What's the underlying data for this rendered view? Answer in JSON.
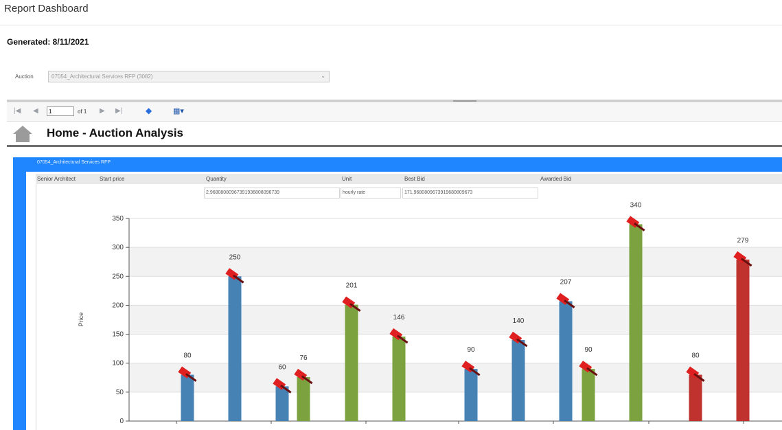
{
  "header": {
    "title": "Report Dashboard"
  },
  "generated": "Generated: 8/11/2021",
  "auction": {
    "label": "Auction",
    "value": "07054_Architectural Services RFP (3082)"
  },
  "toolbar": {
    "page": "1",
    "of_label": "of 1"
  },
  "nav": {
    "title": "Home - Auction Analysis"
  },
  "panel": {
    "title": "07054_Architectural Services RFP",
    "columns": [
      "Senior Architect",
      "Start price",
      "Quantity",
      "Unit",
      "Best Bid",
      "Awarded Bid"
    ],
    "row": {
      "quantity": "2,96808080967391936808096739",
      "unit": "hourly rate",
      "best_bid": "171,9680809673919680809673"
    }
  },
  "colors": {
    "blue": "#4682b4",
    "green": "#7ba23f",
    "red": "#c0322e",
    "panel": "#1f86ff"
  },
  "chart_data": {
    "type": "bar",
    "ylabel": "Price",
    "ylim": [
      0,
      350
    ],
    "yticks": [
      0,
      50,
      100,
      150,
      200,
      250,
      300,
      350
    ],
    "grid": true,
    "series": [
      {
        "color": "blue",
        "values": [
          80,
          250,
          60,
          90,
          140,
          207
        ]
      },
      {
        "color": "green",
        "values": [
          76,
          201,
          146,
          90,
          340
        ]
      },
      {
        "color": "red",
        "values": [
          80,
          279
        ]
      }
    ],
    "bars": [
      {
        "value": 80,
        "label": "80",
        "color": "blue"
      },
      {
        "value": 250,
        "label": "250",
        "color": "blue"
      },
      {
        "value": 60,
        "label": "60",
        "color": "blue"
      },
      {
        "value": 76,
        "label": "76",
        "color": "green"
      },
      {
        "value": 201,
        "label": "201",
        "color": "green"
      },
      {
        "value": 146,
        "label": "146",
        "color": "green"
      },
      {
        "value": 90,
        "label": "90",
        "color": "blue"
      },
      {
        "value": 140,
        "label": "140",
        "color": "blue"
      },
      {
        "value": 207,
        "label": "207",
        "color": "blue"
      },
      {
        "value": 90,
        "label": "90",
        "color": "green"
      },
      {
        "value": 340,
        "label": "340",
        "color": "green"
      },
      {
        "value": 80,
        "label": "80",
        "color": "red"
      },
      {
        "value": 279,
        "label": "279",
        "color": "red"
      }
    ]
  }
}
